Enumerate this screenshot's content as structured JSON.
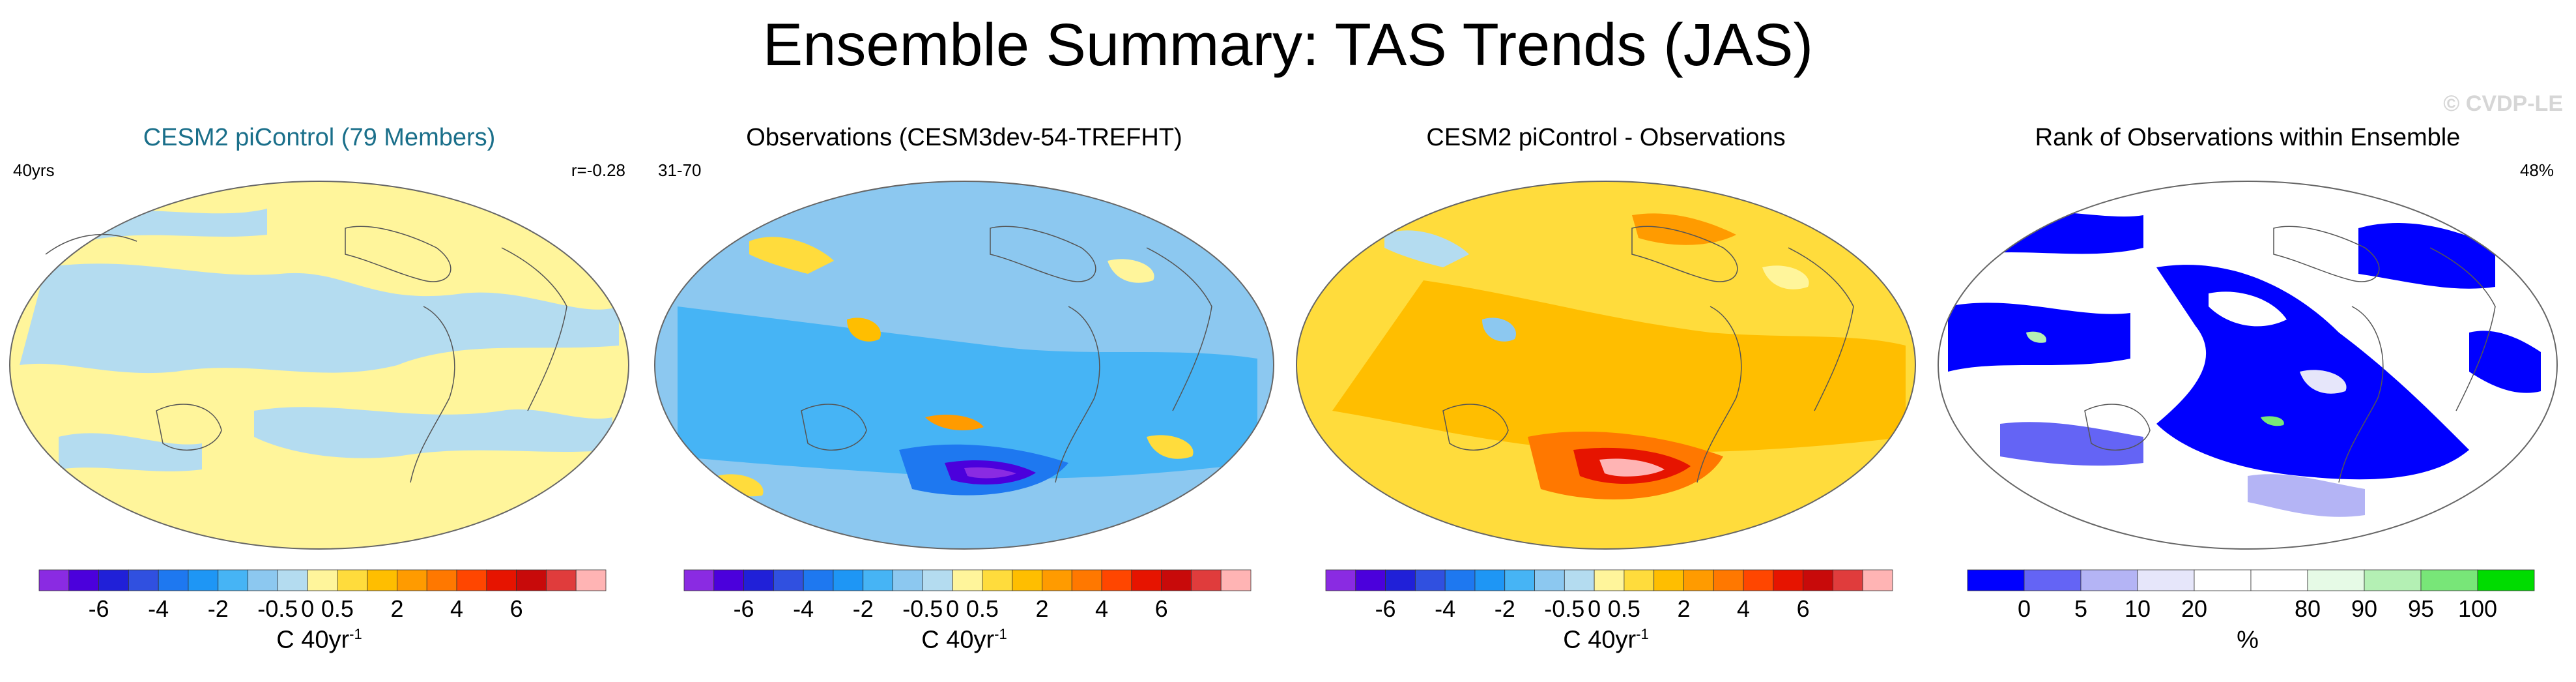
{
  "title": "Ensemble Summary: TAS Trends (JAS)",
  "watermark": "© CVDP-LE",
  "panels": [
    {
      "title": "CESM2 piControl (79 Members)",
      "title_color": "#1a6f8a",
      "left": "40yrs",
      "right": "r=-0.28",
      "units": "C 40yr",
      "units_sup": "-1"
    },
    {
      "title": "Observations (CESM3dev-54-TREFHT)",
      "title_color": "#000000",
      "left": "31-70",
      "right": "",
      "units": "C 40yr",
      "units_sup": "-1"
    },
    {
      "title": "CESM2 piControl - Observations",
      "title_color": "#000000",
      "left": "",
      "right": "",
      "units": "C 40yr",
      "units_sup": "-1"
    },
    {
      "title": "Rank of Observations within Ensemble",
      "title_color": "#000000",
      "left": "",
      "right": "48%",
      "units": "%",
      "units_sup": ""
    }
  ],
  "colorbar_trend": {
    "colors": [
      "#8a2be2",
      "#4b00dc",
      "#2020d8",
      "#3050e0",
      "#1e78f0",
      "#1e96f5",
      "#46b4f5",
      "#8cc8f0",
      "#b4dcf0",
      "#fff59b",
      "#ffdc3c",
      "#ffbe00",
      "#ff9b00",
      "#ff7800",
      "#ff4600",
      "#e61400",
      "#c80a0a",
      "#e03c3c",
      "#ffb4b4"
    ],
    "ticks": [
      {
        "label": "-6",
        "index": 2
      },
      {
        "label": "-4",
        "index": 4
      },
      {
        "label": "-2",
        "index": 6
      },
      {
        "label": "-0.5",
        "index": 8
      },
      {
        "label": "0",
        "index": 9
      },
      {
        "label": "0.5",
        "index": 10
      },
      {
        "label": "2",
        "index": 12
      },
      {
        "label": "4",
        "index": 14
      },
      {
        "label": "6",
        "index": 16
      }
    ]
  },
  "colorbar_rank": {
    "colors": [
      "#0000ff",
      "#6464f5",
      "#b4b4f5",
      "#e6e6fa",
      "#ffffff",
      "#ffffff",
      "#e6fae6",
      "#b4f0b4",
      "#78e678",
      "#00dc00"
    ],
    "ticks": [
      {
        "label": "0",
        "index": 1
      },
      {
        "label": "5",
        "index": 2
      },
      {
        "label": "10",
        "index": 3
      },
      {
        "label": "20",
        "index": 4
      },
      {
        "label": "80",
        "index": 6
      },
      {
        "label": "90",
        "index": 7
      },
      {
        "label": "95",
        "index": 8
      },
      {
        "label": "100",
        "index": 9
      }
    ]
  },
  "chart_data": [
    {
      "type": "heatmap",
      "title": "CESM2 piControl (79 Members)",
      "variable": "TAS trend",
      "units": "C 40yr-1",
      "levels": [
        -6,
        -4,
        -2,
        -0.5,
        0,
        0.5,
        2,
        4,
        6
      ],
      "annotations": [
        "40yrs",
        "r=-0.28"
      ]
    },
    {
      "type": "heatmap",
      "title": "Observations (CESM3dev-54-TREFHT)",
      "variable": "TAS trend",
      "units": "C 40yr-1",
      "levels": [
        -6,
        -4,
        -2,
        -0.5,
        0,
        0.5,
        2,
        4,
        6
      ],
      "annotations": [
        "31-70"
      ]
    },
    {
      "type": "heatmap",
      "title": "CESM2 piControl - Observations",
      "variable": "TAS trend difference",
      "units": "C 40yr-1",
      "levels": [
        -6,
        -4,
        -2,
        -0.5,
        0,
        0.5,
        2,
        4,
        6
      ]
    },
    {
      "type": "heatmap",
      "title": "Rank of Observations within Ensemble",
      "variable": "rank",
      "units": "%",
      "levels": [
        0,
        5,
        10,
        20,
        80,
        90,
        95,
        100
      ],
      "annotations": [
        "48%"
      ]
    }
  ]
}
